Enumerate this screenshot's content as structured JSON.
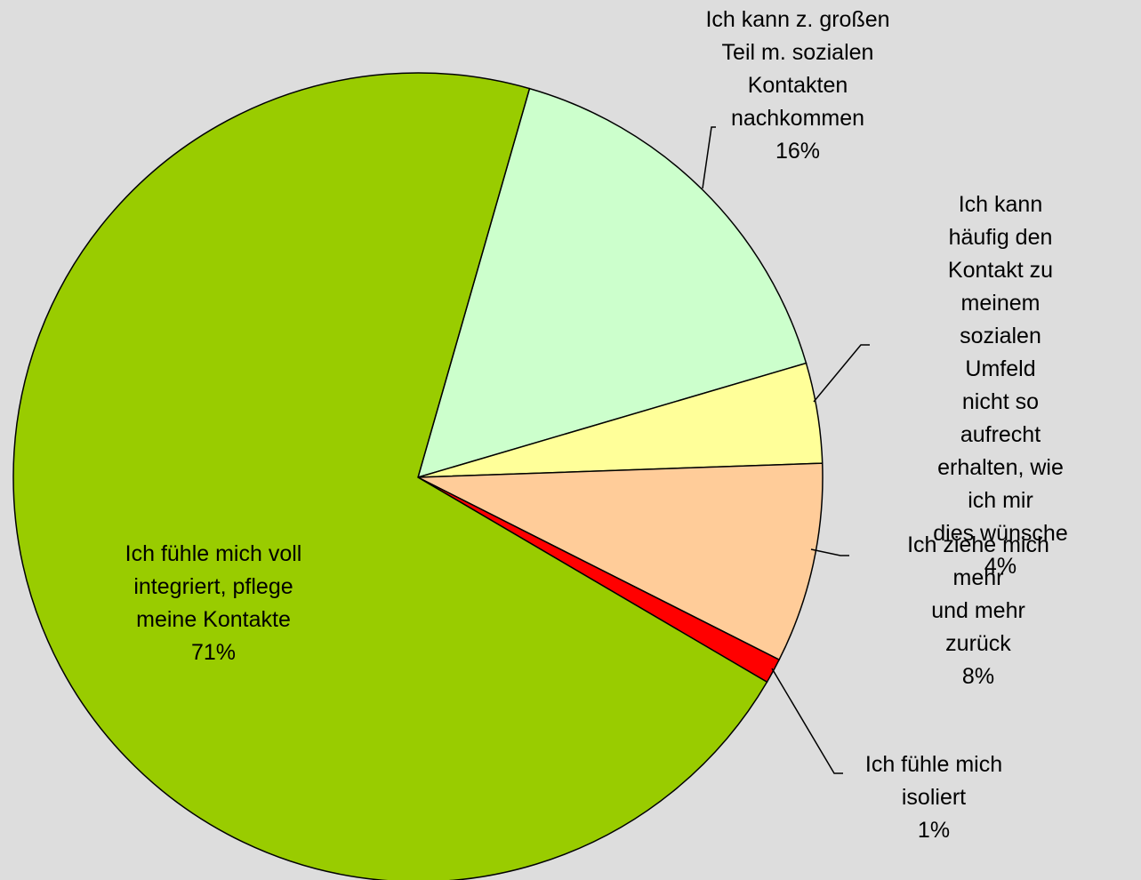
{
  "chart_data": {
    "type": "pie",
    "categories": [
      "Ich kann z. großen\nTeil m. sozialen\nKontakten\nnachkommen",
      "Ich kann häufig den\nKontakt zu meinem\nsozialen Umfeld\nnicht so aufrecht\nerhalten, wie ich mir\ndies wünsche",
      "Ich ziehe mich mehr\nund mehr zurück",
      "Ich fühle mich\nisoliert",
      "Ich fühle mich voll\nintegriert, pflege\nmeine Kontakte"
    ],
    "values": [
      16,
      4,
      8,
      1,
      71
    ],
    "value_labels": [
      "16%",
      "4%",
      "8%",
      "1%",
      "71%"
    ],
    "colors": [
      "#ccffcc",
      "#ffff99",
      "#ffcc99",
      "#ff0000",
      "#99cc00"
    ]
  }
}
